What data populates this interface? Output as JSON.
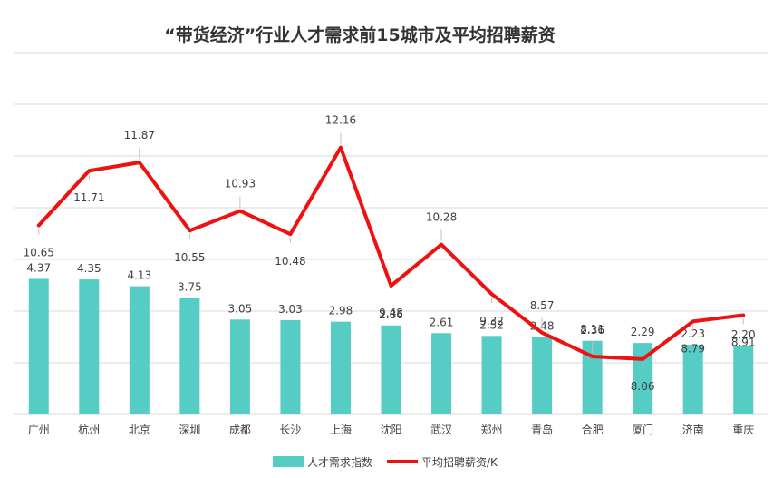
{
  "chart_data": {
    "type": "bar+line",
    "title": "“带货经济”行业人才需求前15城市及平均招聘薪资",
    "categories": [
      "广州",
      "杭州",
      "北京",
      "深圳",
      "成都",
      "长沙",
      "上海",
      "沈阳",
      "武汉",
      "郑州",
      "青岛",
      "合肥",
      "厦门",
      "济南",
      "重庆"
    ],
    "series": [
      {
        "name": "人才需求指数",
        "type": "bar",
        "color": "#55CCC4",
        "values": [
          4.37,
          4.35,
          4.13,
          3.75,
          3.05,
          3.03,
          2.98,
          2.86,
          2.61,
          2.52,
          2.48,
          2.36,
          2.29,
          2.23,
          2.2
        ],
        "labels": [
          "4.37",
          "4.35",
          "4.13",
          "3.75",
          "3.05",
          "3.03",
          "2.98",
          "2.86",
          "2.61",
          "2.52",
          "2.48",
          "2.36",
          "2.29",
          "2.23",
          "2.20"
        ]
      },
      {
        "name": "平均招聘薪资/K",
        "type": "line",
        "color": "#EE1111",
        "values": [
          10.65,
          11.71,
          11.87,
          10.55,
          10.93,
          10.48,
          12.16,
          9.48,
          10.28,
          9.32,
          8.57,
          8.11,
          8.06,
          8.79,
          8.91
        ],
        "labels": [
          "10.65",
          "11.71",
          "11.87",
          "10.55",
          "10.93",
          "10.48",
          "12.16",
          "9.48",
          "10.28",
          "9.32",
          "8.57",
          "8.11",
          "8.06",
          "8.79",
          "8.91"
        ]
      }
    ],
    "bar_axis_range": [
      0,
      5
    ],
    "line_axis_range": [
      6,
      14
    ],
    "grid": true,
    "legend_position": "bottom"
  }
}
